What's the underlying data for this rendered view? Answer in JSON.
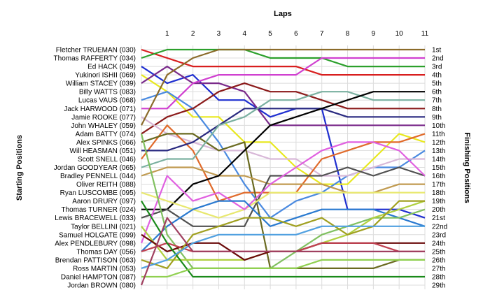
{
  "chart_data": {
    "type": "line",
    "title": "Laps",
    "ylabel_left": "Starting Positions",
    "ylabel_right": "Finishing Positions",
    "x": [
      0,
      1,
      2,
      3,
      4,
      5,
      6,
      7,
      8,
      9,
      10,
      11
    ],
    "x_tick_labels": [
      "1",
      "2",
      "3",
      "4",
      "5",
      "6",
      "7",
      "8",
      "9",
      "10",
      "11"
    ],
    "y_range": [
      1,
      29
    ],
    "grid": true,
    "starting_labels": [
      "Fletcher TRUEMAN (030)",
      "Thomas RAFFERTY (034)",
      "Ed HACK (049)",
      "Yukinori ISHII (069)",
      "William STACEY (039)",
      "Billy WATTS (083)",
      "Lucas VAUS (068)",
      "Jack HARWOOD (071)",
      "Jamie ROOKE (077)",
      "John WHALEY (059)",
      "Adam BATTY (074)",
      "Alex SPINKS (066)",
      "Will HEASMAN (051)",
      "Scott SNELL (046)",
      "Jordan GOODYEAR (065)",
      "Bradley PENNELL (044)",
      "Oliver REITH (088)",
      "Ryan LUSCOMBE (095)",
      "Aaron DRURY (097)",
      "Thomas TURNER (024)",
      "Lewis BRACEWELL (033)",
      "Taylor BELLINI (021)",
      "Samuel HOLGATE (099)",
      "Alex PENDLEBURY (098)",
      "Thomas DAY (056)",
      "Brendan PATTISON (063)",
      "Ross MARTIN (053)",
      "Daniel HAMPTON (087)",
      "Jordan BROWN (080)"
    ],
    "finishing_labels": [
      "1st",
      "2nd",
      "3rd",
      "4th",
      "5th",
      "6th",
      "7th",
      "8th",
      "9th",
      "10th",
      "11th",
      "12th",
      "13th",
      "14th",
      "15th",
      "16th",
      "17th",
      "18th",
      "19th",
      "20th",
      "21st",
      "22nd",
      "23rd",
      "24th",
      "25th",
      "26th",
      "27th",
      "28th",
      "29th"
    ],
    "series": [
      {
        "color": "#d81e1e",
        "values": [
          1,
          2,
          3,
          3,
          3,
          3,
          3,
          4,
          4,
          4,
          4,
          4
        ]
      },
      {
        "color": "#2ca02c",
        "values": [
          2,
          1,
          1,
          1,
          1,
          2,
          2,
          2,
          3,
          3,
          3,
          3
        ]
      },
      {
        "color": "#1f2fd0",
        "values": [
          3,
          5,
          4,
          7,
          7,
          9,
          8,
          8,
          20,
          20,
          20,
          21
        ]
      },
      {
        "color": "#e8e820",
        "values": [
          4,
          6,
          9,
          9,
          12,
          12,
          15,
          17,
          17,
          14,
          11,
          12
        ]
      },
      {
        "color": "#7a2a8a",
        "values": [
          5,
          3,
          5,
          5,
          6,
          10,
          10,
          10,
          10,
          10,
          10,
          10
        ]
      },
      {
        "color": "#d040d0",
        "values": [
          8,
          8,
          5,
          4,
          4,
          4,
          4,
          2,
          2,
          2,
          2,
          2
        ]
      },
      {
        "color": "#4a8ae0",
        "values": [
          7,
          6,
          8,
          12,
          17,
          21,
          19,
          18,
          16,
          15,
          15,
          13
        ]
      },
      {
        "color": "#8b1a1a",
        "values": [
          11,
          9,
          8,
          6,
          5,
          6,
          6,
          7,
          8,
          8,
          8,
          8
        ]
      },
      {
        "color": "#d8b8d8",
        "values": [
          9,
          11,
          12,
          13,
          13,
          14,
          14,
          16,
          16,
          15,
          14,
          14
        ]
      },
      {
        "color": "#8b6b2a",
        "values": [
          10,
          4,
          2,
          1,
          1,
          1,
          1,
          1,
          1,
          1,
          1,
          1
        ]
      },
      {
        "color": "#e06a2a",
        "values": [
          14,
          10,
          13,
          19,
          18,
          18,
          18,
          14,
          13,
          12,
          12,
          11
        ]
      },
      {
        "color": "#2a2a80",
        "values": [
          13,
          13,
          12,
          10,
          8,
          8,
          8,
          8,
          9,
          9,
          9,
          9
        ]
      },
      {
        "color": "#6a6a20",
        "values": [
          12,
          11,
          11,
          13,
          12,
          27,
          27,
          27,
          27,
          27,
          26,
          26
        ]
      },
      {
        "color": "#7ab0a0",
        "values": [
          15,
          14,
          14,
          10,
          9,
          7,
          7,
          6,
          6,
          7,
          7,
          7
        ]
      },
      {
        "color": "#c09a50",
        "values": [
          16,
          15,
          15,
          16,
          16,
          17,
          17,
          17,
          18,
          18,
          17,
          17
        ]
      },
      {
        "color": "#000000",
        "values": [
          20,
          20,
          17,
          16,
          13,
          10,
          9,
          8,
          7,
          6,
          6,
          6
        ]
      },
      {
        "color": "#505050",
        "values": [
          21,
          20,
          22,
          22,
          22,
          16,
          16,
          16,
          15,
          16,
          15,
          16
        ]
      },
      {
        "color": "#e8e870",
        "values": [
          18,
          19,
          20,
          21,
          20,
          18,
          18,
          18,
          18,
          18,
          18,
          18
        ]
      },
      {
        "color": "#e060e0",
        "values": [
          24,
          16,
          19,
          18,
          20,
          17,
          15,
          13,
          12,
          12,
          13,
          16
        ]
      },
      {
        "color": "#2a7ad0",
        "values": [
          25,
          22,
          20,
          19,
          19,
          22,
          21,
          20,
          20,
          20,
          21,
          22
        ]
      },
      {
        "color": "#80c060",
        "values": [
          11,
          23,
          27,
          27,
          27,
          27,
          25,
          23,
          22,
          21,
          21,
          20
        ]
      },
      {
        "color": "#b0d040",
        "values": [
          22,
          26,
          26,
          26,
          26,
          25,
          25,
          24,
          23,
          21,
          20,
          19
        ]
      },
      {
        "color": "#6a0a0a",
        "values": [
          23,
          25,
          24,
          24,
          26,
          25,
          25,
          24,
          24,
          24,
          24,
          24
        ]
      },
      {
        "color": "#c04050",
        "values": [
          25,
          24,
          25,
          25,
          25,
          25,
          25,
          24,
          24,
          24,
          25,
          25
        ]
      },
      {
        "color": "#a0a020",
        "values": [
          26,
          27,
          23,
          22,
          21,
          21,
          22,
          21,
          23,
          22,
          19,
          19
        ]
      },
      {
        "color": "#1a8a1a",
        "values": [
          19,
          24,
          28,
          28,
          28,
          28,
          28,
          28,
          28,
          28,
          28,
          28
        ]
      },
      {
        "color": "#50a0e0",
        "values": [
          27,
          26,
          24,
          23,
          23,
          23,
          23,
          22,
          22,
          22,
          22,
          22
        ]
      },
      {
        "color": "#90d050",
        "values": [
          28,
          28,
          27,
          27,
          27,
          27,
          27,
          26,
          26,
          26,
          26,
          26
        ]
      },
      {
        "color": "#a04060",
        "values": [
          29,
          21,
          25,
          25,
          25,
          25,
          25,
          25,
          25,
          25,
          25,
          25
        ]
      }
    ]
  }
}
